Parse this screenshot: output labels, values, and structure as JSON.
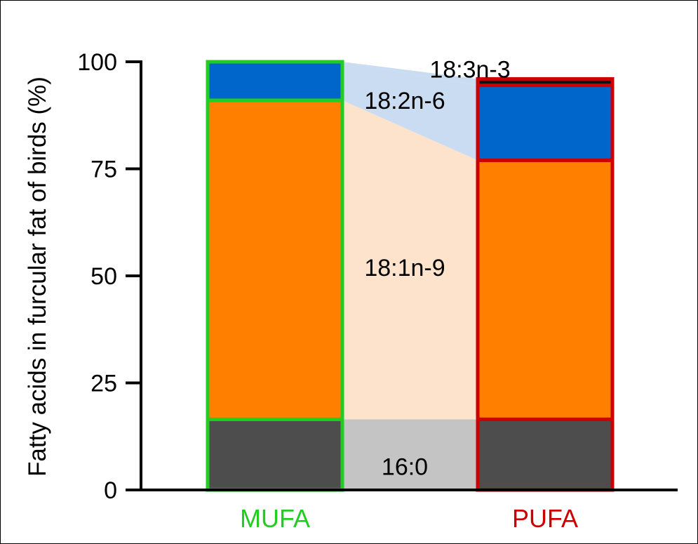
{
  "chart_data": {
    "type": "bar",
    "stacked": true,
    "ylabel": "Fatty acids in furcular fat of birds (%)",
    "xlabel": "",
    "ylim": [
      0,
      100
    ],
    "yticks": [
      "0",
      "25",
      "50",
      "75",
      "100"
    ],
    "categories": [
      "MUFA",
      "PUFA"
    ],
    "category_colors": [
      "#22cc22",
      "#cc0000"
    ],
    "series": [
      {
        "name": "16:0",
        "color": "#4d4d4d",
        "values": [
          16.5,
          16.5
        ]
      },
      {
        "name": "18:1n-9",
        "color": "#ff7f00",
        "values": [
          74.5,
          60.5
        ]
      },
      {
        "name": "18:2n-6",
        "color": "#0066cc",
        "values": [
          9.0,
          17.5
        ]
      },
      {
        "name": "18:3n-3",
        "color": "#111111",
        "values": [
          0.0,
          1.5
        ]
      }
    ],
    "connector_colors": [
      "#c4c4c4",
      "#fde2cc",
      "#c9dcf2",
      "#c9dcf2"
    ],
    "grid": false,
    "legend": "inline labels between bars"
  }
}
